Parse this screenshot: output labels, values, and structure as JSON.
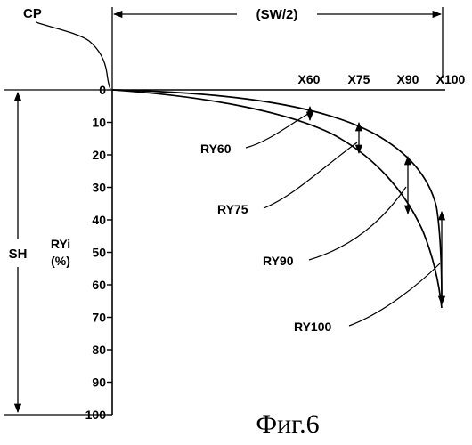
{
  "labels": {
    "cp": "CP",
    "sw_half": "(SW/2)",
    "sh": "SH",
    "ryi": "RYi",
    "ryi_unit": "(%)",
    "x60": "X60",
    "x75": "X75",
    "x90": "X90",
    "x100": "X100",
    "ry60": "RY60",
    "ry75": "RY75",
    "ry90": "RY90",
    "ry100": "RY100",
    "caption": "Фиг.6"
  },
  "y_axis": {
    "ticks": [
      "0",
      "10",
      "20",
      "30",
      "40",
      "50",
      "60",
      "70",
      "80",
      "90",
      "100"
    ]
  },
  "diagram_data": {
    "x_stations": [
      "X60",
      "X75",
      "X90",
      "X100"
    ],
    "ry_percent": {
      "RY60": 7,
      "RY75": 19,
      "RY90": 38,
      "RY100": 65
    },
    "ry_labels": [
      "RY60",
      "RY75",
      "RY90",
      "RY100"
    ]
  }
}
